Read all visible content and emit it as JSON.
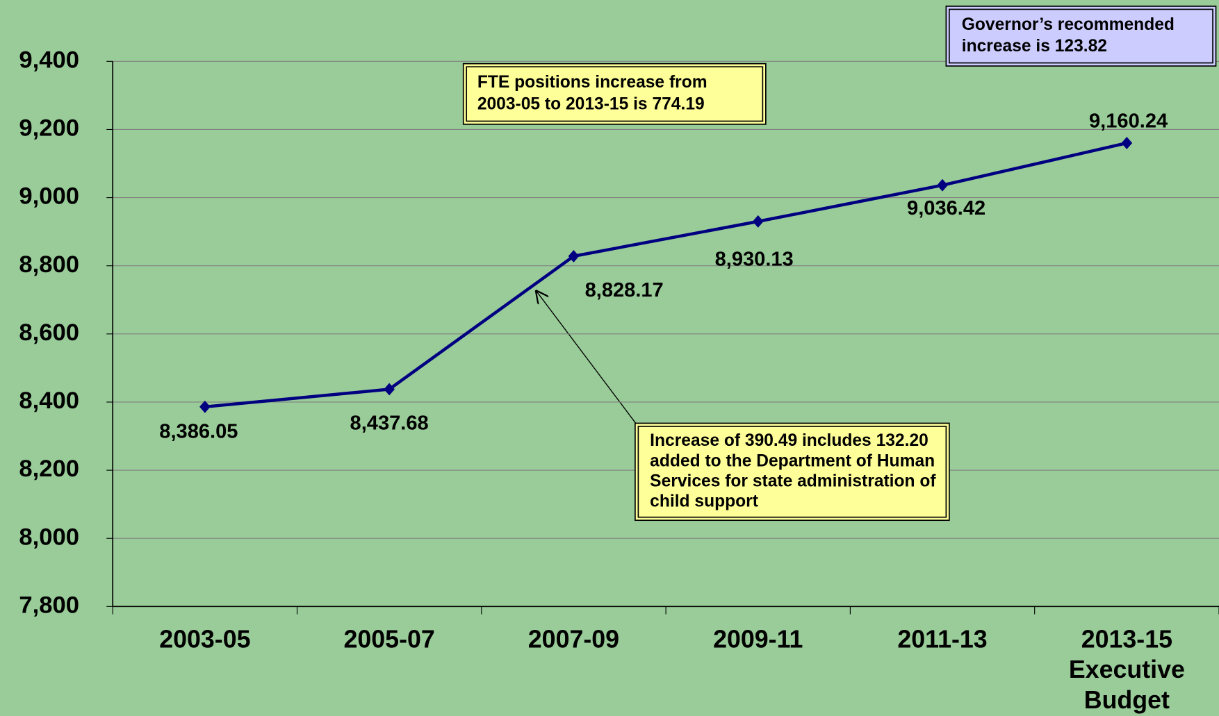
{
  "chart_data": {
    "type": "line",
    "categories": [
      "2003-05",
      "2005-07",
      "2007-09",
      "2009-11",
      "2011-13",
      "2013-15 Executive Budget"
    ],
    "series": [
      {
        "name": "FTE positions",
        "color": "#000080",
        "values": [
          8386.05,
          8437.68,
          8828.17,
          8930.13,
          9036.42,
          9160.24
        ],
        "value_labels": [
          "8,386.05",
          "8,437.68",
          "8,828.17",
          "8,930.13",
          "9,036.42",
          "9,160.24"
        ]
      }
    ],
    "ylim": [
      7800,
      9400
    ],
    "yticks": [
      {
        "value": 7800,
        "label": "7,800"
      },
      {
        "value": 8000,
        "label": "8,000"
      },
      {
        "value": 8200,
        "label": "8,200"
      },
      {
        "value": 8400,
        "label": "8,400"
      },
      {
        "value": 8600,
        "label": "8,600"
      },
      {
        "value": 8800,
        "label": "8,800"
      },
      {
        "value": 9000,
        "label": "9,000"
      },
      {
        "value": 9200,
        "label": "9,200"
      },
      {
        "value": 9400,
        "label": "9,400"
      }
    ],
    "grid": true,
    "annotations": [
      {
        "lines": [
          "FTE positions increase from",
          "2003-05 to 2013-15 is 774.19"
        ]
      },
      {
        "lines": [
          "Governor’s recommended",
          "increase is 123.82"
        ]
      },
      {
        "lines": [
          "Increase of 390.49 includes 132.20",
          "added to the Department of Human",
          "Services for state administration of",
          "child support"
        ]
      }
    ]
  }
}
